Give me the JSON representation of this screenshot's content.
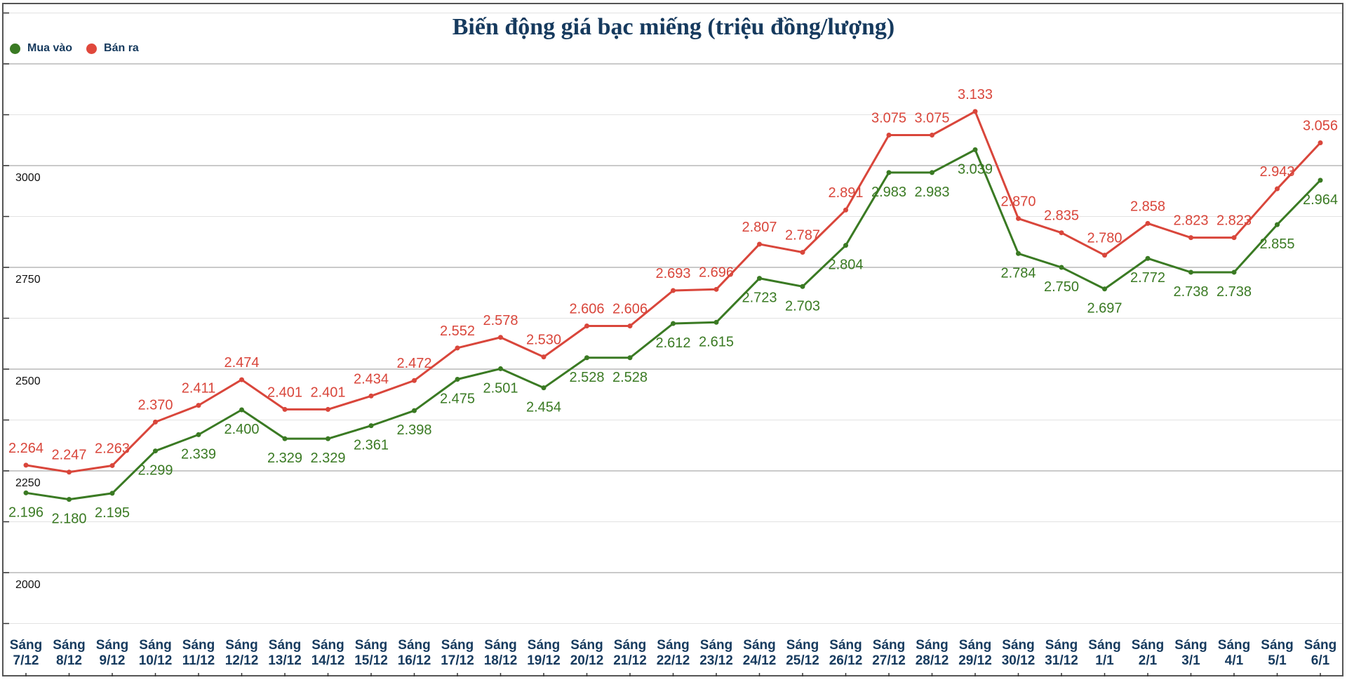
{
  "chart_data": {
    "type": "line",
    "title": "Biến động giá bạc miếng (triệu đồng/lượng)",
    "xlabel": "",
    "ylabel": "",
    "ylim": [
      1875,
      3375
    ],
    "yticks": [
      2000,
      2250,
      2500,
      2750,
      3000
    ],
    "ytick_labels": [
      "2000",
      "2250",
      "2500",
      "2750",
      "3000"
    ],
    "grid": true,
    "legend_position": "top-left",
    "categories": [
      "Sáng 7/12",
      "Sáng 8/12",
      "Sáng 9/12",
      "Sáng 10/12",
      "Sáng 11/12",
      "Sáng 12/12",
      "Sáng 13/12",
      "Sáng 14/12",
      "Sáng 15/12",
      "Sáng 16/12",
      "Sáng 17/12",
      "Sáng 18/12",
      "Sáng 19/12",
      "Sáng 20/12",
      "Sáng 21/12",
      "Sáng 22/12",
      "Sáng 23/12",
      "Sáng 24/12",
      "Sáng 25/12",
      "Sáng 26/12",
      "Sáng 27/12",
      "Sáng 28/12",
      "Sáng 29/12",
      "Sáng 30/12",
      "Sáng 31/12",
      "Sáng 1/1",
      "Sáng 2/1",
      "Sáng 3/1",
      "Sáng 4/1",
      "Sáng 5/1",
      "Sáng 6/1"
    ],
    "series": [
      {
        "name": "Mua vào",
        "color": "#3a7a23",
        "label_side": "below",
        "values": [
          2196,
          2180,
          2195,
          2299,
          2339,
          2400,
          2329,
          2329,
          2361,
          2398,
          2475,
          2501,
          2454,
          2528,
          2528,
          2612,
          2615,
          2723,
          2703,
          2804,
          2983,
          2983,
          3039,
          2784,
          2750,
          2697,
          2772,
          2738,
          2738,
          2855,
          2964
        ],
        "labels": [
          "2.196",
          "2.180",
          "2.195",
          "2.299",
          "2.339",
          "2.400",
          "2.329",
          "2.329",
          "2.361",
          "2.398",
          "2.475",
          "2.501",
          "2.454",
          "2.528",
          "2.528",
          "2.612",
          "2.615",
          "2.723",
          "2.703",
          "2.804",
          "2.983",
          "2.983",
          "3.039",
          "2.784",
          "2.750",
          "2.697",
          "2.772",
          "2.738",
          "2.738",
          "2.855",
          "2.964"
        ]
      },
      {
        "name": "Bán ra",
        "color": "#d9463b",
        "label_side": "above",
        "values": [
          2264,
          2247,
          2263,
          2370,
          2411,
          2474,
          2401,
          2401,
          2434,
          2472,
          2552,
          2578,
          2530,
          2606,
          2606,
          2693,
          2696,
          2807,
          2787,
          2891,
          3075,
          3075,
          3133,
          2870,
          2835,
          2780,
          2858,
          2823,
          2823,
          2943,
          3056
        ],
        "labels": [
          "2.264",
          "2.247",
          "2.263",
          "2.370",
          "2.411",
          "2.474",
          "2.401",
          "2.401",
          "2.434",
          "2.472",
          "2.552",
          "2.578",
          "2.530",
          "2.606",
          "2.606",
          "2.693",
          "2.696",
          "2.807",
          "2.787",
          "2.891",
          "3.075",
          "3.075",
          "3.133",
          "2.870",
          "2.835",
          "2.780",
          "2.858",
          "2.823",
          "2.823",
          "2.943",
          "3.056"
        ]
      }
    ]
  }
}
